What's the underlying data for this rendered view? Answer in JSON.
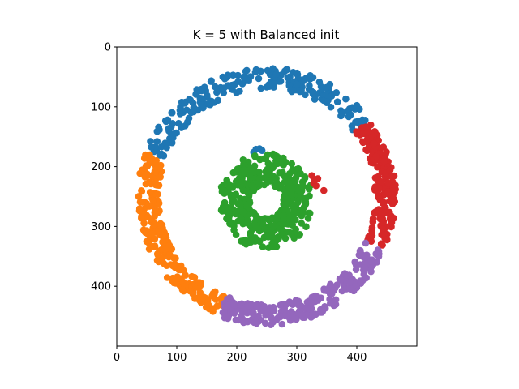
{
  "chart_data": {
    "type": "scatter",
    "title": "K = 5 with Balanced init",
    "xlabel": "",
    "ylabel": "",
    "xlim": [
      0,
      500
    ],
    "ylim": [
      500,
      0
    ],
    "y_inverted": true,
    "xticks": [
      0,
      100,
      200,
      300,
      400
    ],
    "yticks": [
      0,
      100,
      200,
      300,
      400
    ],
    "grid": false,
    "legend": "none",
    "point_count_note_absent": true,
    "series": [
      {
        "color": "#1f77b4",
        "ring": "outer",
        "center": [
          250,
          250
        ],
        "radius_range": [
          180,
          215
        ],
        "angle_range_deg": [
          -160,
          -35
        ],
        "count": 230,
        "extra_points": [
          [
            232,
            171
          ],
          [
            238,
            170
          ],
          [
            228,
            176
          ],
          [
            242,
            173
          ]
        ]
      },
      {
        "color": "#ff7f0e",
        "ring": "outer",
        "center": [
          250,
          250
        ],
        "radius_range": [
          180,
          215
        ],
        "angle_range_deg": [
          112,
          200
        ],
        "count": 230
      },
      {
        "color": "#2ca02c",
        "ring": "inner",
        "center": [
          250,
          258
        ],
        "radius_range": [
          28,
          80
        ],
        "angle_range_deg": [
          -180,
          180
        ],
        "count": 420
      },
      {
        "color": "#d62728",
        "ring": "outer",
        "center": [
          250,
          250
        ],
        "radius_range": [
          180,
          215
        ],
        "angle_range_deg": [
          -36,
          24
        ],
        "count": 180,
        "extra_points": [
          [
            325,
            215
          ],
          [
            330,
            222
          ],
          [
            328,
            228
          ],
          [
            335,
            220
          ],
          [
            332,
            232
          ],
          [
            345,
            240
          ]
        ]
      },
      {
        "color": "#9467bd",
        "ring": "outer",
        "center": [
          250,
          250
        ],
        "radius_range": [
          180,
          215
        ],
        "angle_range_deg": [
          25,
          112
        ],
        "count": 240
      }
    ]
  }
}
